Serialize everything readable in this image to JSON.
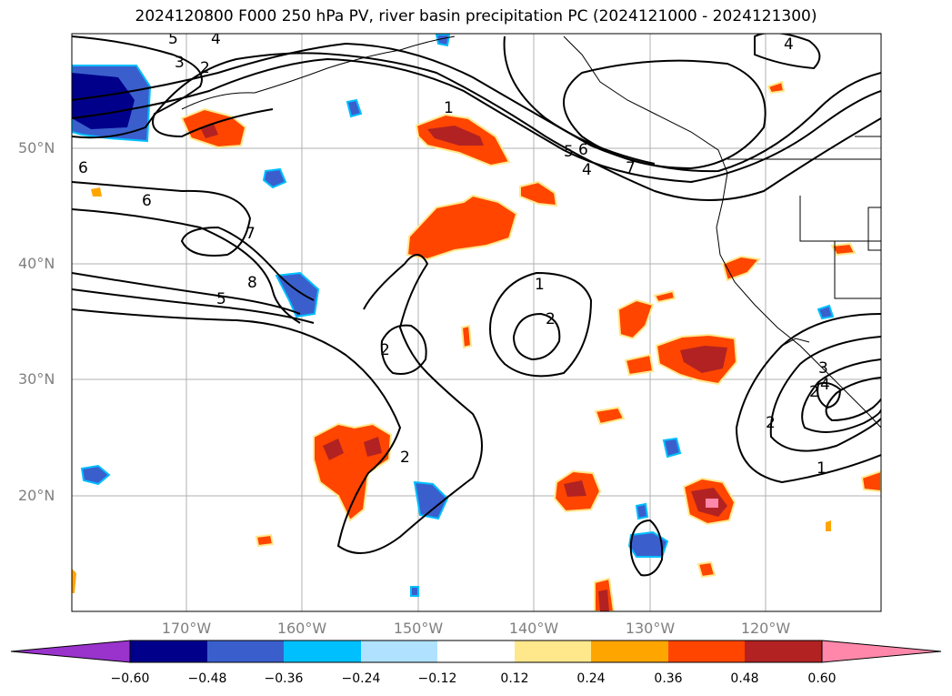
{
  "title": "2024120800 F000 250 hPa PV, river basin precipitation PC (2024121000 - 2024121300)",
  "lat_labels": [
    "50°N",
    "40°N",
    "30°N",
    "20°N"
  ],
  "lon_labels": [
    "170°W",
    "160°W",
    "150°W",
    "140°W",
    "130°W",
    "120°W"
  ],
  "contour_labels": [
    "5",
    "4",
    "3",
    "2",
    "6",
    "6",
    "7",
    "8",
    "5",
    "1",
    "5",
    "6",
    "4",
    "7",
    "4",
    "1",
    "2",
    "2",
    "2",
    "2",
    "2",
    "3",
    "4",
    "1"
  ],
  "colorbar": {
    "ticks": [
      "−0.60",
      "−0.48",
      "−0.36",
      "−0.24",
      "−0.12",
      "0.12",
      "0.24",
      "0.36",
      "0.48",
      "0.60"
    ],
    "colors": [
      "#9933cc",
      "#00008b",
      "#3a5fcd",
      "#00bfff",
      "#b0e2ff",
      "#ffffff",
      "#ffe88c",
      "#ffa500",
      "#ff4500",
      "#b22222",
      "#ff88aa"
    ]
  }
}
